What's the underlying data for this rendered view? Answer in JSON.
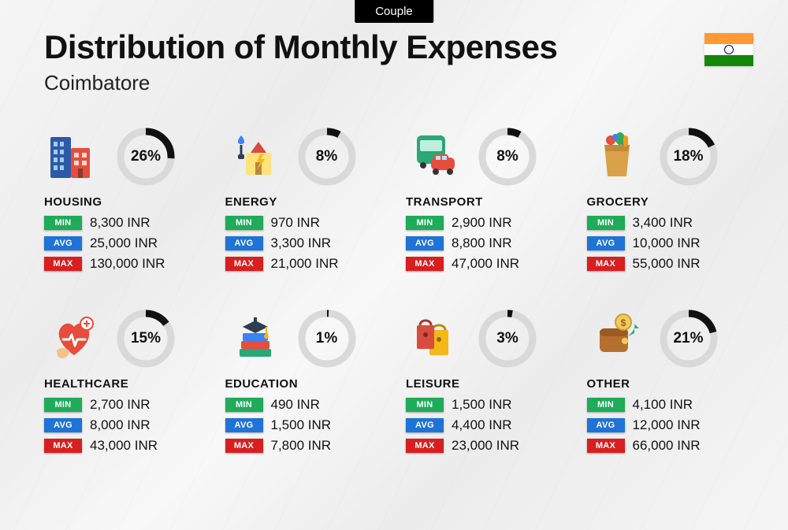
{
  "tag": "Couple",
  "title": "Distribution of Monthly Expenses",
  "subtitle": "Coimbatore",
  "currency": "INR",
  "badges": {
    "min": {
      "label": "MIN",
      "color": "#1eab5a"
    },
    "avg": {
      "label": "AVG",
      "color": "#1f73d6"
    },
    "max": {
      "label": "MAX",
      "color": "#d81f1f"
    }
  },
  "donut": {
    "track_color": "#d9d9d9",
    "fill_color": "#111111",
    "stroke_width": 9,
    "radius": 32
  },
  "flag": {
    "top": "#ff9933",
    "middle": "#ffffff",
    "bottom": "#138808",
    "chakra": "#000080"
  },
  "categories": [
    {
      "key": "housing",
      "name": "HOUSING",
      "percent": 26,
      "min": "8,300",
      "avg": "25,000",
      "max": "130,000"
    },
    {
      "key": "energy",
      "name": "ENERGY",
      "percent": 8,
      "min": "970",
      "avg": "3,300",
      "max": "21,000"
    },
    {
      "key": "transport",
      "name": "TRANSPORT",
      "percent": 8,
      "min": "2,900",
      "avg": "8,800",
      "max": "47,000"
    },
    {
      "key": "grocery",
      "name": "GROCERY",
      "percent": 18,
      "min": "3,400",
      "avg": "10,000",
      "max": "55,000"
    },
    {
      "key": "healthcare",
      "name": "HEALTHCARE",
      "percent": 15,
      "min": "2,700",
      "avg": "8,000",
      "max": "43,000"
    },
    {
      "key": "education",
      "name": "EDUCATION",
      "percent": 1,
      "min": "490",
      "avg": "1,500",
      "max": "7,800"
    },
    {
      "key": "leisure",
      "name": "LEISURE",
      "percent": 3,
      "min": "1,500",
      "avg": "4,400",
      "max": "23,000"
    },
    {
      "key": "other",
      "name": "OTHER",
      "percent": 21,
      "min": "4,100",
      "avg": "12,000",
      "max": "66,000"
    }
  ]
}
